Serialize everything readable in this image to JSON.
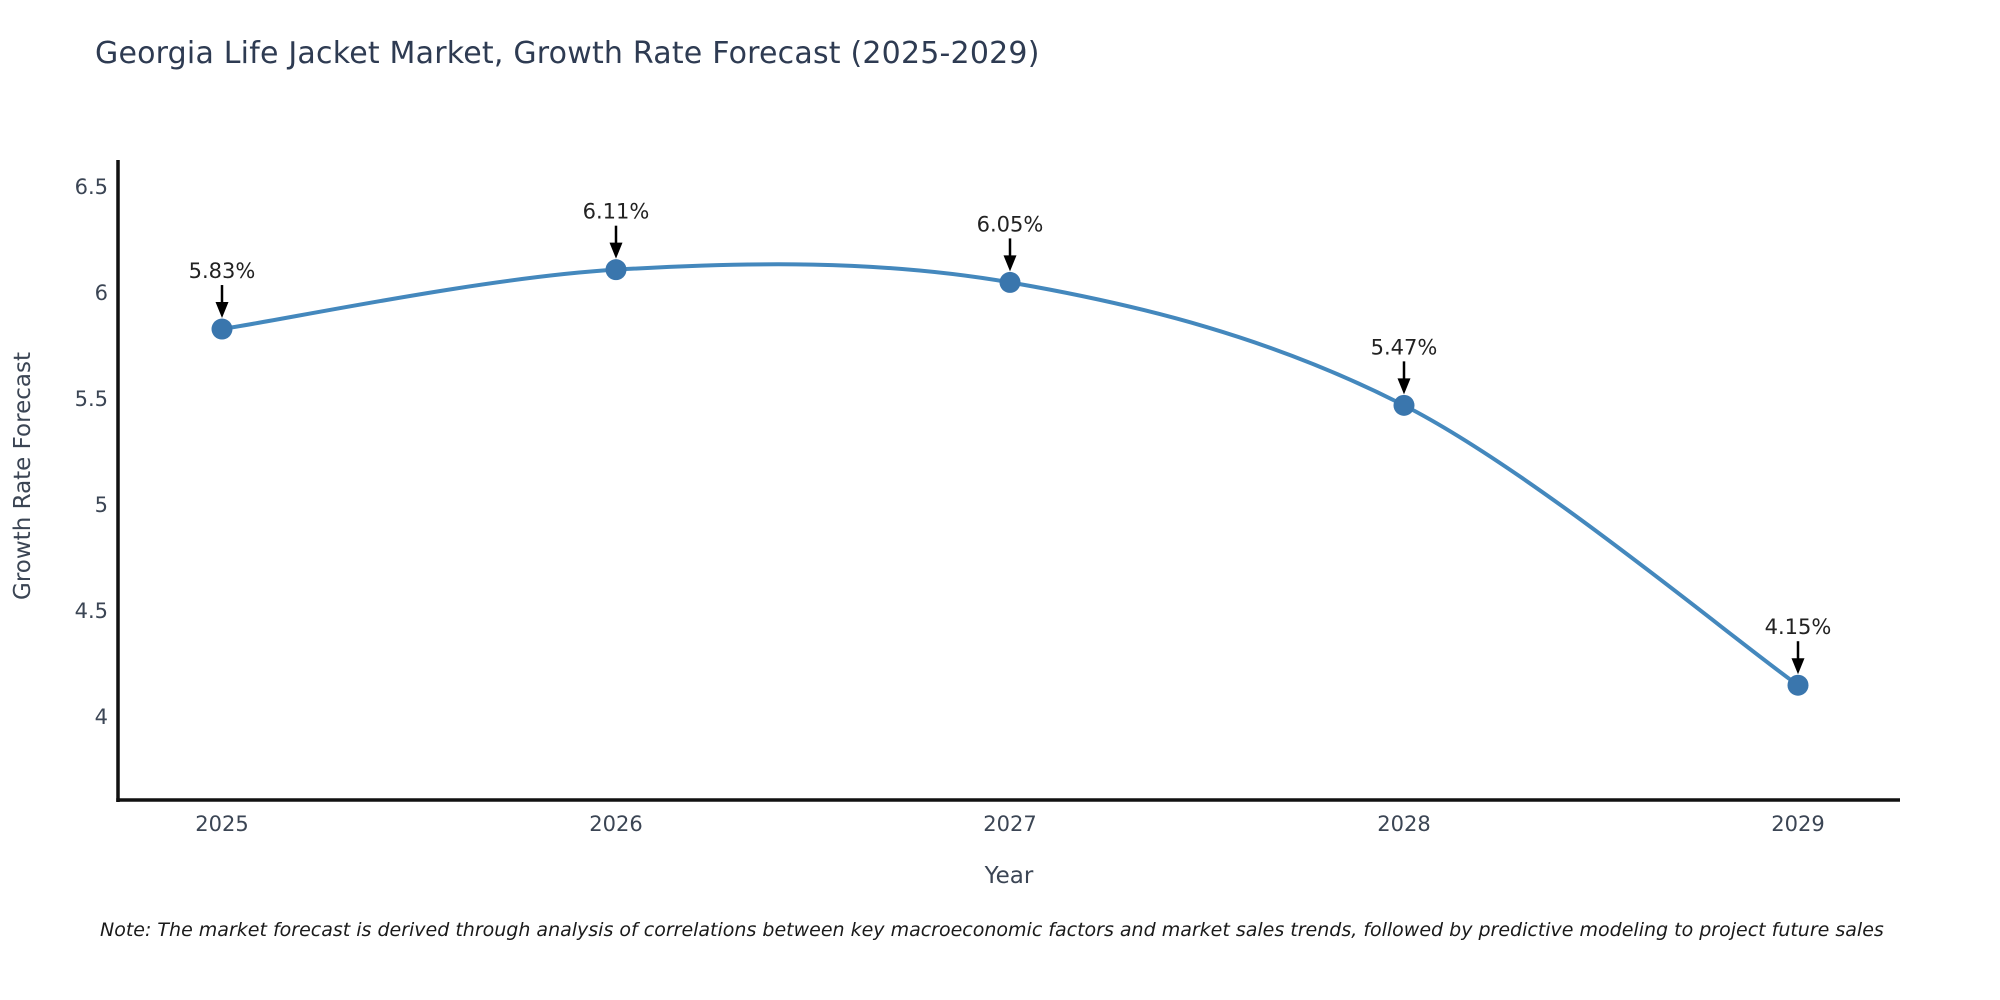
{
  "title": "Georgia Life Jacket Market, Growth Rate Forecast (2025-2029)",
  "note": "Note: The market forecast is derived through analysis of correlations between key macroeconomic factors and market sales trends, followed by predictive modeling to project future sales",
  "chart_data": {
    "type": "line",
    "title": "Georgia Life Jacket Market, Growth Rate Forecast (2025-2029)",
    "x": [
      2025,
      2026,
      2027,
      2028,
      2029
    ],
    "values": [
      5.83,
      6.11,
      6.05,
      5.47,
      4.15
    ],
    "labels": [
      "5.83%",
      "6.11%",
      "6.05%",
      "5.47%",
      "4.15%"
    ],
    "xlabel": "Year",
    "ylabel": "Growth Rate Forecast",
    "yticks": [
      6.5,
      6,
      5.5,
      5,
      4.5,
      4
    ],
    "ylim": [
      3.6,
      6.65
    ],
    "xlim": [
      2024.73,
      2029.26
    ],
    "grid": false,
    "legend": false,
    "line_style": "spline",
    "line_color": "#4488bd",
    "marker_color": "#3a76ad",
    "axis_color": "#111111",
    "tick_color": "#3b4554",
    "annotation_color": "#222222",
    "arrow_color": "#000000"
  }
}
